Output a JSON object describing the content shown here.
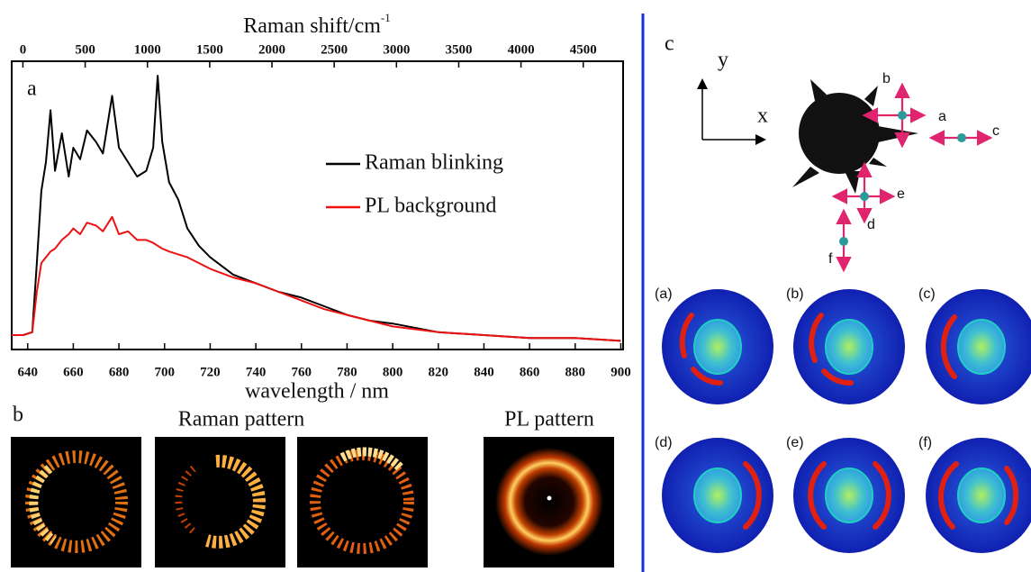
{
  "chart_data": {
    "type": "line",
    "panel_label": "a",
    "x2label": "Raman shift/cm",
    "x2label_sup": "-1",
    "xlabel": "wavelength / nm",
    "xlim": [
      633,
      901
    ],
    "xticks": [
      640,
      660,
      680,
      700,
      720,
      740,
      760,
      780,
      800,
      820,
      840,
      860,
      880,
      900
    ],
    "x2lim": [
      -90,
      4820
    ],
    "x2ticks": [
      0,
      500,
      1000,
      1500,
      2000,
      2500,
      3000,
      3500,
      4000,
      4500
    ],
    "ylim": [
      0,
      100
    ],
    "x": [
      633,
      638,
      642,
      644,
      646,
      648,
      650,
      652,
      655,
      658,
      660,
      663,
      666,
      670,
      673,
      677,
      680,
      684,
      688,
      692,
      695,
      697,
      699,
      702,
      706,
      710,
      715,
      720,
      730,
      740,
      750,
      760,
      770,
      780,
      790,
      800,
      820,
      840,
      860,
      880,
      900
    ],
    "series": [
      {
        "name": "Raman blinking",
        "color": "#000000",
        "values": [
          5,
          5,
          6,
          30,
          55,
          65,
          83,
          62,
          75,
          60,
          70,
          66,
          76,
          72,
          68,
          88,
          70,
          65,
          60,
          62,
          70,
          95,
          72,
          58,
          52,
          42,
          36,
          32,
          26,
          23,
          20,
          18,
          15,
          12,
          10,
          9,
          6,
          5,
          4,
          4,
          3
        ]
      },
      {
        "name": "PL background",
        "color": "#ee1111",
        "values": [
          5,
          5,
          6,
          20,
          30,
          32,
          34,
          35,
          38,
          40,
          42,
          40,
          44,
          43,
          41,
          46,
          40,
          41,
          38,
          38,
          37,
          36,
          35,
          34,
          33,
          32,
          30,
          28,
          25,
          23,
          20,
          17,
          14,
          12,
          10,
          8,
          6,
          5,
          4,
          4,
          3
        ]
      }
    ]
  },
  "panel_b": {
    "label": "b",
    "raman_title": "Raman pattern",
    "pl_title": "PL pattern"
  },
  "panel_c": {
    "label": "c",
    "axis_y": "y",
    "axis_x": "x",
    "points": [
      "a",
      "b",
      "c",
      "d",
      "e",
      "f"
    ],
    "simulations": [
      "(a)",
      "(b)",
      "(c)",
      "(d)",
      "(e)",
      "(f)"
    ]
  }
}
